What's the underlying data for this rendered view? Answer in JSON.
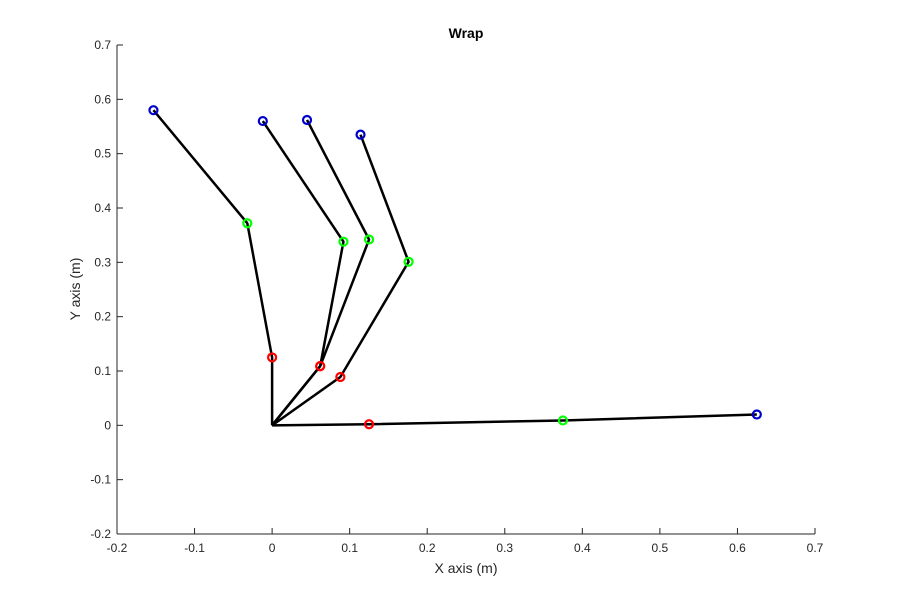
{
  "chart_data": {
    "type": "line",
    "title": "Wrap",
    "xlabel": "X axis (m)",
    "ylabel": "Y axis (m)",
    "xlim": [
      -0.2,
      0.7
    ],
    "ylim": [
      -0.2,
      0.7
    ],
    "xticks": [
      -0.2,
      -0.1,
      0,
      0.1,
      0.2,
      0.3,
      0.4,
      0.5,
      0.6,
      0.7
    ],
    "yticks": [
      -0.2,
      -0.1,
      0,
      0.1,
      0.2,
      0.3,
      0.4,
      0.5,
      0.6,
      0.7
    ],
    "xtick_labels": [
      "-0.2",
      "-0.1",
      "0",
      "0.1",
      "0.2",
      "0.3",
      "0.4",
      "0.5",
      "0.6",
      "0.7"
    ],
    "ytick_labels": [
      "-0.2",
      "-0.1",
      "0",
      "0.1",
      "0.2",
      "0.3",
      "0.4",
      "0.5",
      "0.6",
      "0.7"
    ],
    "grid": false,
    "legend": false,
    "line_color": "#000000",
    "marker_colors": [
      "#ff0000",
      "#00ff00",
      "#0000cc"
    ],
    "series": [
      {
        "x": [
          0,
          0.125,
          0.375,
          0.625
        ],
        "y": [
          0,
          0.002,
          0.009,
          0.02
        ]
      },
      {
        "x": [
          0,
          0.088,
          0.176,
          0.114
        ],
        "y": [
          0,
          0.089,
          0.301,
          0.535
        ]
      },
      {
        "x": [
          0,
          0.062,
          0.125,
          0.045
        ],
        "y": [
          0,
          0.109,
          0.342,
          0.562
        ]
      },
      {
        "x": [
          0,
          0.062,
          0.092,
          -0.012
        ],
        "y": [
          0,
          0.109,
          0.338,
          0.56
        ]
      },
      {
        "x": [
          0,
          0.0,
          -0.032,
          -0.153
        ],
        "y": [
          0,
          0.125,
          0.372,
          0.58
        ]
      }
    ]
  }
}
